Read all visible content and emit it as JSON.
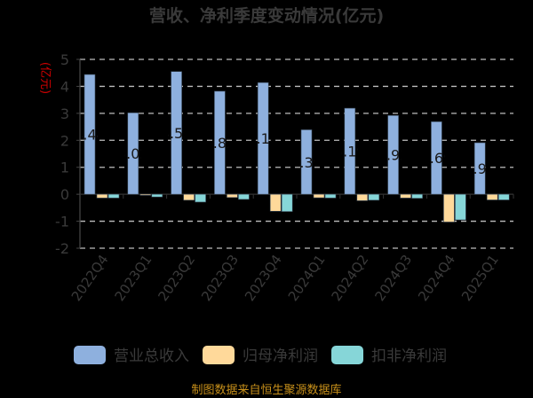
{
  "chart_data": {
    "type": "bar",
    "title": "营收、净利季度变动情况(亿元)",
    "ylabel": "(亿元)",
    "ylim": [
      -2,
      5
    ],
    "yticks": [
      -2,
      -1,
      0,
      1,
      2,
      3,
      4,
      5
    ],
    "grid": true,
    "legend_position": "bottom",
    "categories": [
      "2022Q4",
      "2023Q1",
      "2023Q2",
      "2023Q3",
      "2023Q4",
      "2024Q1",
      "2024Q2",
      "2024Q3",
      "2024Q4",
      "2025Q1"
    ],
    "series": [
      {
        "name": "营业总收入",
        "color": "#8eb0de",
        "values": [
          4.44,
          3.02,
          4.55,
          3.82,
          4.14,
          2.39,
          3.19,
          2.92,
          2.69,
          1.91
        ]
      },
      {
        "name": "归母净利润",
        "color": "#ffd99a",
        "values": [
          -0.14,
          -0.04,
          -0.22,
          -0.12,
          -0.63,
          -0.13,
          -0.24,
          -0.14,
          -1.03,
          -0.21
        ]
      },
      {
        "name": "扣非净利润",
        "color": "#86d6d8",
        "values": [
          -0.14,
          -0.1,
          -0.29,
          -0.19,
          -0.64,
          -0.14,
          -0.22,
          -0.15,
          -0.95,
          -0.21
        ]
      }
    ],
    "data_labels": [
      "4.44",
      "3.02",
      "4.55",
      "3.82",
      "4.14",
      "2.39",
      "3.19",
      "2.92",
      "2.69",
      "1.91"
    ]
  },
  "footer": {
    "source": "制图数据来自恒生聚源数据库"
  }
}
